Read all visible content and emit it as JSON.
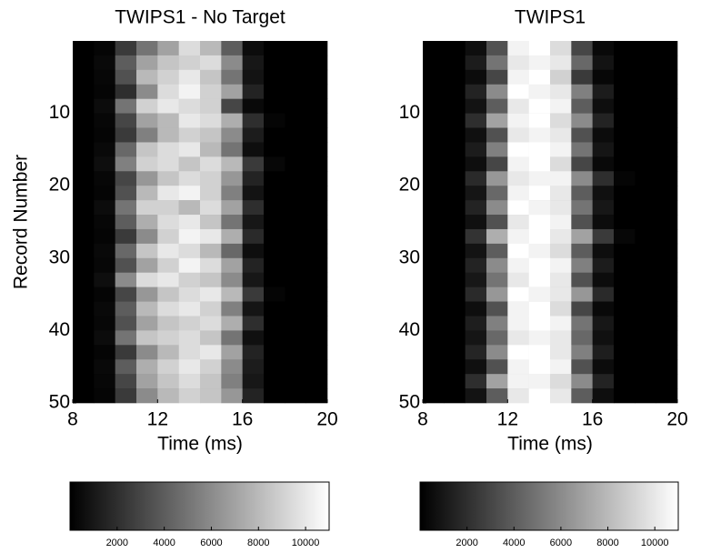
{
  "chart_data": [
    {
      "type": "heatmap",
      "title": "TWIPS1 - No Target",
      "xlabel": "Time (ms)",
      "ylabel": "Record Number",
      "colormap": "gray",
      "xlim": [
        8,
        20
      ],
      "xticks": [
        8,
        12,
        16,
        20
      ],
      "ylim": [
        50,
        0
      ],
      "yticks": [
        10,
        20,
        30,
        40,
        50
      ],
      "xbins": [
        8,
        9,
        10,
        11,
        12,
        13,
        14,
        15,
        16,
        17,
        18,
        19,
        20
      ],
      "ybins": [
        0,
        2,
        4,
        6,
        8,
        10,
        12,
        14,
        16,
        18,
        20,
        22,
        24,
        26,
        28,
        30,
        32,
        34,
        36,
        38,
        40,
        42,
        44,
        46,
        48,
        50
      ],
      "clim": [
        0,
        11000
      ],
      "cticks": [
        2000,
        4000,
        6000,
        8000,
        10000
      ],
      "z": [
        [
          0,
          200,
          2500,
          5000,
          7000,
          9500,
          8000,
          4000,
          500,
          0,
          0,
          0
        ],
        [
          0,
          400,
          4000,
          7000,
          8500,
          9000,
          9500,
          6000,
          1000,
          0,
          0,
          0
        ],
        [
          0,
          300,
          3500,
          8000,
          9000,
          10000,
          8500,
          5000,
          800,
          0,
          0,
          0
        ],
        [
          0,
          200,
          2000,
          6000,
          9500,
          10500,
          9000,
          7000,
          1500,
          0,
          0,
          0
        ],
        [
          0,
          500,
          5000,
          9000,
          10000,
          9500,
          9000,
          3000,
          400,
          0,
          0,
          0
        ],
        [
          0,
          300,
          3000,
          7000,
          8000,
          10000,
          9500,
          7500,
          2000,
          200,
          0,
          0
        ],
        [
          0,
          200,
          2500,
          5500,
          8000,
          9000,
          8500,
          6000,
          1200,
          0,
          0,
          0
        ],
        [
          0,
          400,
          4500,
          8500,
          9500,
          10000,
          8000,
          5000,
          600,
          0,
          0,
          0
        ],
        [
          0,
          600,
          5500,
          9000,
          9500,
          8500,
          9500,
          8000,
          2500,
          300,
          0,
          0
        ],
        [
          0,
          300,
          3000,
          6500,
          8500,
          9500,
          9000,
          6500,
          1500,
          0,
          0,
          0
        ],
        [
          0,
          200,
          3500,
          8000,
          10000,
          10500,
          9000,
          5500,
          800,
          0,
          0,
          0
        ],
        [
          0,
          500,
          5000,
          9000,
          9000,
          8000,
          9500,
          7000,
          2000,
          0,
          0,
          0
        ],
        [
          0,
          300,
          4000,
          7500,
          9500,
          10000,
          8500,
          5000,
          1000,
          0,
          0,
          0
        ],
        [
          0,
          200,
          2500,
          6000,
          9000,
          10500,
          10000,
          7500,
          1800,
          0,
          0,
          0
        ],
        [
          0,
          400,
          4500,
          8500,
          10000,
          9500,
          8000,
          4500,
          600,
          0,
          0,
          0
        ],
        [
          0,
          300,
          3500,
          7000,
          9000,
          10500,
          9500,
          7000,
          1500,
          0,
          0,
          0
        ],
        [
          0,
          600,
          6000,
          9500,
          10000,
          9000,
          8500,
          6000,
          1000,
          0,
          0,
          0
        ],
        [
          0,
          200,
          3000,
          6500,
          8500,
          9500,
          10000,
          8000,
          2500,
          200,
          0,
          0
        ],
        [
          0,
          400,
          4000,
          8000,
          9500,
          10000,
          9000,
          5500,
          900,
          0,
          0,
          0
        ],
        [
          0,
          300,
          3500,
          7000,
          8500,
          9000,
          9500,
          7500,
          2000,
          0,
          0,
          0
        ],
        [
          0,
          500,
          5000,
          8500,
          9000,
          9500,
          8500,
          5000,
          700,
          0,
          0,
          0
        ],
        [
          0,
          200,
          2500,
          6000,
          8000,
          9500,
          10000,
          7000,
          1500,
          0,
          0,
          0
        ],
        [
          0,
          400,
          4000,
          7500,
          9000,
          10000,
          9000,
          6000,
          1200,
          0,
          0,
          0
        ],
        [
          0,
          300,
          3000,
          7000,
          8500,
          9500,
          8500,
          5500,
          1000,
          0,
          0,
          0
        ],
        [
          0,
          200,
          2500,
          6000,
          8000,
          9000,
          8500,
          6500,
          1500,
          0,
          0,
          0
        ]
      ]
    },
    {
      "type": "heatmap",
      "title": "TWIPS1",
      "xlabel": "Time (ms)",
      "colormap": "gray",
      "xlim": [
        8,
        20
      ],
      "xticks": [
        8,
        12,
        16,
        20
      ],
      "ylim": [
        50,
        0
      ],
      "yticks": [
        10,
        20,
        30,
        40,
        50
      ],
      "xbins": [
        8,
        9,
        10,
        11,
        12,
        13,
        14,
        15,
        16,
        17,
        18,
        19,
        20
      ],
      "ybins": [
        0,
        2,
        4,
        6,
        8,
        10,
        12,
        14,
        16,
        18,
        20,
        22,
        24,
        26,
        28,
        30,
        32,
        34,
        36,
        38,
        40,
        42,
        44,
        46,
        48,
        50
      ],
      "clim": [
        0,
        11000
      ],
      "cticks": [
        2000,
        4000,
        6000,
        8000,
        10000
      ],
      "z": [
        [
          0,
          0,
          600,
          3500,
          10500,
          11000,
          9500,
          3000,
          400,
          0,
          0,
          0
        ],
        [
          0,
          0,
          1200,
          5000,
          10000,
          10500,
          10000,
          4500,
          800,
          0,
          0,
          0
        ],
        [
          0,
          0,
          500,
          3000,
          10500,
          11000,
          9000,
          2500,
          300,
          0,
          0,
          0
        ],
        [
          0,
          0,
          1500,
          6000,
          11000,
          10500,
          10000,
          5500,
          1200,
          0,
          0,
          0
        ],
        [
          0,
          0,
          800,
          4000,
          10000,
          11000,
          10500,
          4000,
          600,
          0,
          0,
          0
        ],
        [
          0,
          0,
          2000,
          7000,
          10500,
          11000,
          9500,
          6000,
          1500,
          0,
          0,
          0
        ],
        [
          0,
          0,
          700,
          3500,
          10000,
          10500,
          10000,
          3500,
          500,
          0,
          0,
          0
        ],
        [
          0,
          0,
          1200,
          5500,
          11000,
          11000,
          10500,
          5000,
          900,
          0,
          0,
          0
        ],
        [
          0,
          0,
          600,
          3000,
          10500,
          11000,
          9500,
          3000,
          400,
          0,
          0,
          0
        ],
        [
          0,
          0,
          1800,
          6500,
          10000,
          10500,
          10500,
          6000,
          2000,
          200,
          0,
          0
        ],
        [
          0,
          0,
          900,
          4500,
          10500,
          11000,
          10000,
          4000,
          700,
          0,
          0,
          0
        ],
        [
          0,
          0,
          1500,
          6000,
          11000,
          10500,
          10000,
          5000,
          1000,
          0,
          0,
          0
        ],
        [
          0,
          0,
          700,
          3500,
          10000,
          11000,
          10500,
          3500,
          500,
          0,
          0,
          0
        ],
        [
          0,
          0,
          2200,
          7500,
          10500,
          11000,
          10000,
          7000,
          2500,
          300,
          0,
          0
        ],
        [
          0,
          0,
          800,
          4000,
          11000,
          10500,
          9500,
          4000,
          600,
          0,
          0,
          0
        ],
        [
          0,
          0,
          1500,
          6000,
          10500,
          11000,
          10500,
          5500,
          1200,
          0,
          0,
          0
        ],
        [
          0,
          0,
          1000,
          5000,
          10000,
          11000,
          10000,
          3500,
          500,
          0,
          0,
          0
        ],
        [
          0,
          0,
          1800,
          6500,
          11000,
          10500,
          10000,
          6500,
          1800,
          0,
          0,
          0
        ],
        [
          0,
          0,
          600,
          3500,
          10500,
          11000,
          9500,
          3000,
          400,
          0,
          0,
          0
        ],
        [
          0,
          0,
          1300,
          5500,
          10500,
          11000,
          10500,
          5000,
          1000,
          0,
          0,
          0
        ],
        [
          0,
          0,
          900,
          4500,
          10000,
          10500,
          10000,
          4500,
          700,
          0,
          0,
          0
        ],
        [
          0,
          0,
          1600,
          6000,
          11000,
          11000,
          10000,
          5500,
          1300,
          0,
          0,
          0
        ],
        [
          0,
          0,
          700,
          3500,
          10500,
          11000,
          10500,
          3500,
          500,
          0,
          0,
          0
        ],
        [
          0,
          0,
          2000,
          7000,
          10500,
          10500,
          9500,
          6000,
          1500,
          0,
          0,
          0
        ],
        [
          0,
          0,
          800,
          4000,
          10000,
          11000,
          10000,
          4000,
          600,
          0,
          0,
          0
        ]
      ]
    }
  ]
}
